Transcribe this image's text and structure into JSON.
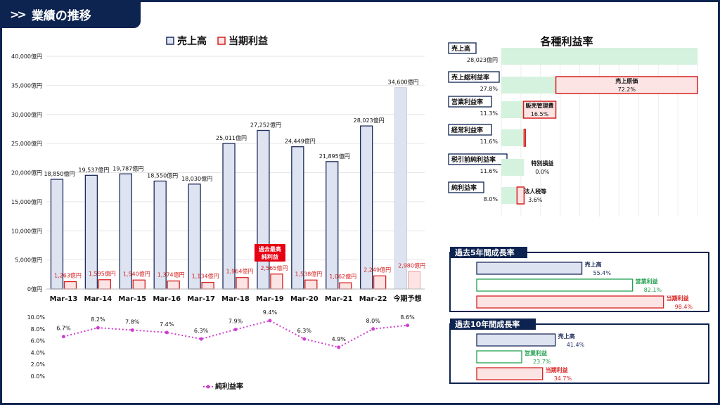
{
  "header": {
    "title": "業績の推移",
    "icon": "double-chevron-right-icon"
  },
  "colors": {
    "navy": "#0d2350",
    "sales_fill": "#dde3f0",
    "sales_stroke": "#1f2d5c",
    "profit_stroke": "#d62020",
    "profit_fill": "#fde4e4",
    "green_fill": "#d5f2de",
    "green_stroke": "#22a050",
    "pink": "#d03fd0"
  },
  "chart_data": [
    {
      "type": "bar",
      "legend": [
        "売上高",
        "当期利益"
      ],
      "categories": [
        "Mar-13",
        "Mar-14",
        "Mar-15",
        "Mar-16",
        "Mar-17",
        "Mar-18",
        "Mar-19",
        "Mar-20",
        "Mar-21",
        "Mar-22",
        "今期予想"
      ],
      "series": [
        {
          "name": "売上高",
          "values": [
            18850,
            19537,
            19787,
            18550,
            18030,
            25011,
            27252,
            24449,
            21895,
            28023,
            34600
          ],
          "labels": [
            "18,850億円",
            "19,537億円",
            "19,787億円",
            "18,550億円",
            "18,030億円",
            "25,011億円",
            "27,252億円",
            "24,449億円",
            "21,895億円",
            "28,023億円",
            "34,600億円"
          ]
        },
        {
          "name": "当期利益",
          "values": [
            1263,
            1595,
            1540,
            1374,
            1134,
            1964,
            2565,
            1538,
            1062,
            2249,
            2980
          ],
          "labels": [
            "1,263億円",
            "1,595億円",
            "1,540億円",
            "1,374億円",
            "1,134億円",
            "1,964億円",
            "2,565億円",
            "1,538億円",
            "1,062億円",
            "2,249億円",
            "2,980億円"
          ]
        }
      ],
      "ylim": [
        0,
        40000
      ],
      "yticks": [
        "0億円",
        "5,000億円",
        "10,000億円",
        "15,000億円",
        "20,000億円",
        "25,000億円",
        "30,000億円",
        "35,000億円",
        "40,000億円"
      ],
      "grid": true,
      "annotation": {
        "text_line1": "過去最高",
        "text_line2": "純利益",
        "category": "Mar-19"
      }
    },
    {
      "type": "line",
      "name": "純利益率",
      "categories": [
        "Mar-13",
        "Mar-14",
        "Mar-15",
        "Mar-16",
        "Mar-17",
        "Mar-18",
        "Mar-19",
        "Mar-20",
        "Mar-21",
        "Mar-22",
        "今期予想"
      ],
      "values": [
        6.7,
        8.2,
        7.8,
        7.4,
        6.3,
        7.9,
        9.4,
        6.3,
        4.9,
        8.0,
        8.6
      ],
      "labels": [
        "6.7%",
        "8.2%",
        "7.8%",
        "7.4%",
        "6.3%",
        "7.9%",
        "9.4%",
        "6.3%",
        "4.9%",
        "8.0%",
        "8.6%"
      ],
      "ylim": [
        0,
        10
      ],
      "yticks": [
        "0.0%",
        "2.0%",
        "4.0%",
        "6.0%",
        "8.0%",
        "10.0%"
      ]
    },
    {
      "type": "bar",
      "title": "各種利益率",
      "rows": [
        {
          "label": "売上高",
          "value_label": "28,023億円",
          "value": 100
        },
        {
          "label": "売上総利益率",
          "value_label": "27.8%",
          "value": 27.8,
          "cost_label": "売上原価",
          "cost_value_label": "72.2%",
          "cost": 72.2
        },
        {
          "label": "営業利益率",
          "value_label": "11.3%",
          "value": 11.3,
          "cost_label": "販売管理費",
          "cost_value_label": "16.5%",
          "cost": 16.5
        },
        {
          "label": "経常利益率",
          "value_label": "11.6%",
          "value": 11.6,
          "cost": 0.3
        },
        {
          "label": "税引前純利益率",
          "value_label": "11.6%",
          "value": 11.6,
          "cost_label": "特別損益",
          "cost_value_label": "0.0%",
          "cost": 0
        },
        {
          "label": "純利益率",
          "value_label": "8.0%",
          "value": 8.0,
          "cost_label": "法人税等",
          "cost_value_label": "3.6%",
          "cost": 3.6
        }
      ]
    },
    {
      "type": "bar",
      "title": "過去5年間成長率",
      "bars": [
        {
          "name": "売上高",
          "value": 55.4,
          "label": "55.4%"
        },
        {
          "name": "営業利益",
          "value": 82.1,
          "label": "82.1%"
        },
        {
          "name": "当期利益",
          "value": 98.4,
          "label": "98.4%"
        }
      ]
    },
    {
      "type": "bar",
      "title": "過去10年間成長率",
      "bars": [
        {
          "name": "売上高",
          "value": 41.4,
          "label": "41.4%"
        },
        {
          "name": "営業利益",
          "value": 23.7,
          "label": "23.7%"
        },
        {
          "name": "当期利益",
          "value": 34.7,
          "label": "34.7%"
        }
      ]
    }
  ]
}
